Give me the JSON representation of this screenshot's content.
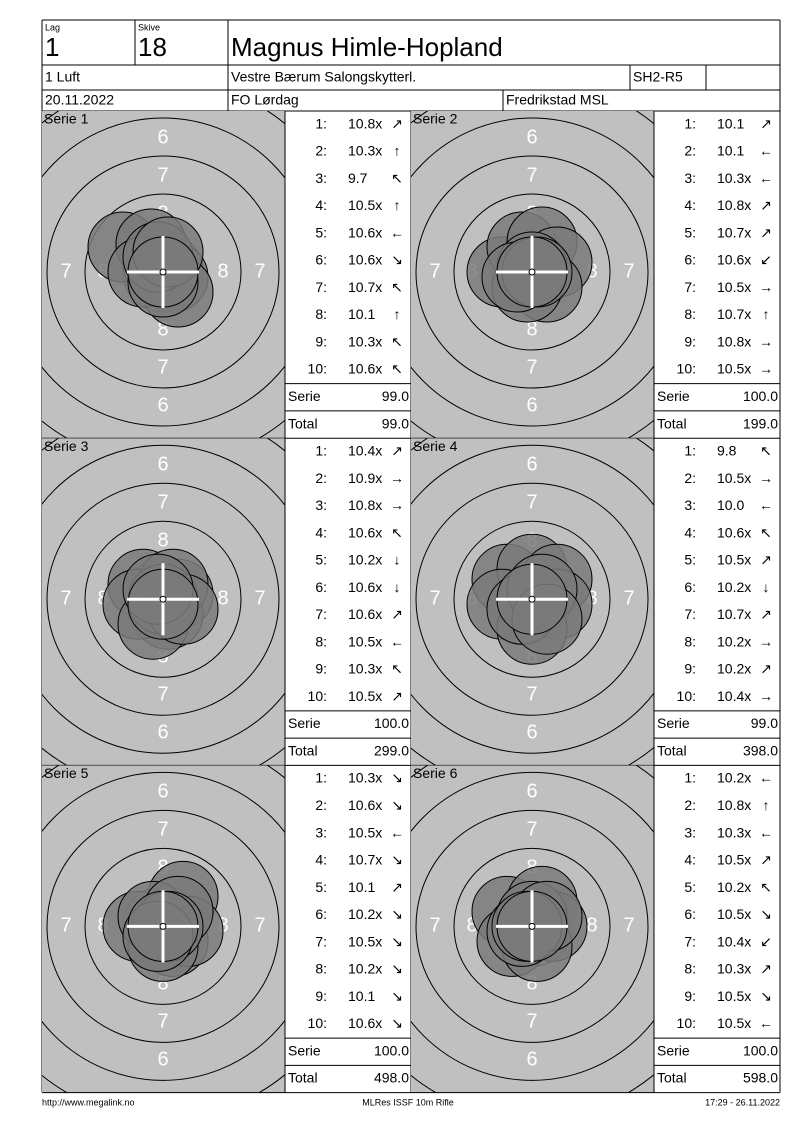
{
  "header": {
    "lag_label": "Lag",
    "lag": "1",
    "skive_label": "Skive",
    "skive": "18",
    "name": "Magnus Himle-Hopland",
    "class": "1 Luft",
    "club": "Vestre Bærum Salongskytterl.",
    "code": "SH2-R5",
    "date": "20.11.2022",
    "event": "FO Lørdag",
    "place": "Fredrikstad MSL"
  },
  "ring_labels": [
    "6",
    "7",
    "8"
  ],
  "series": [
    {
      "title": "Serie 1",
      "shots": [
        [
          "1:",
          "10.8x",
          "↗"
        ],
        [
          "2:",
          "10.3x",
          "↑"
        ],
        [
          "3:",
          "9.7",
          "↖"
        ],
        [
          "4:",
          "10.5x",
          "↑"
        ],
        [
          "5:",
          "10.6x",
          "←"
        ],
        [
          "6:",
          "10.6x",
          "↘"
        ],
        [
          "7:",
          "10.7x",
          "↖"
        ],
        [
          "8:",
          "10.1",
          "↑"
        ],
        [
          "9:",
          "10.3x",
          "↖"
        ],
        [
          "10:",
          "10.6x",
          "↖"
        ]
      ],
      "serie_label": "Serie",
      "serie": "99.0",
      "total_label": "Total",
      "total": "99.0"
    },
    {
      "title": "Serie 2",
      "shots": [
        [
          "1:",
          "10.1",
          "↗"
        ],
        [
          "2:",
          "10.1",
          "←"
        ],
        [
          "3:",
          "10.3x",
          "←"
        ],
        [
          "4:",
          "10.8x",
          "↗"
        ],
        [
          "5:",
          "10.7x",
          "↗"
        ],
        [
          "6:",
          "10.6x",
          "↙"
        ],
        [
          "7:",
          "10.5x",
          "→"
        ],
        [
          "8:",
          "10.7x",
          "↑"
        ],
        [
          "9:",
          "10.8x",
          "→"
        ],
        [
          "10:",
          "10.5x",
          "→"
        ]
      ],
      "serie_label": "Serie",
      "serie": "100.0",
      "total_label": "Total",
      "total": "199.0"
    },
    {
      "title": "Serie 3",
      "shots": [
        [
          "1:",
          "10.4x",
          "↗"
        ],
        [
          "2:",
          "10.9x",
          "→"
        ],
        [
          "3:",
          "10.8x",
          "→"
        ],
        [
          "4:",
          "10.6x",
          "↖"
        ],
        [
          "5:",
          "10.2x",
          "↓"
        ],
        [
          "6:",
          "10.6x",
          "↓"
        ],
        [
          "7:",
          "10.6x",
          "↗"
        ],
        [
          "8:",
          "10.5x",
          "←"
        ],
        [
          "9:",
          "10.3x",
          "↖"
        ],
        [
          "10:",
          "10.5x",
          "↗"
        ]
      ],
      "serie_label": "Serie",
      "serie": "100.0",
      "total_label": "Total",
      "total": "299.0"
    },
    {
      "title": "Serie 4",
      "shots": [
        [
          "1:",
          "9.8",
          "↖"
        ],
        [
          "2:",
          "10.5x",
          "→"
        ],
        [
          "3:",
          "10.0",
          "←"
        ],
        [
          "4:",
          "10.6x",
          "↖"
        ],
        [
          "5:",
          "10.5x",
          "↗"
        ],
        [
          "6:",
          "10.2x",
          "↓"
        ],
        [
          "7:",
          "10.7x",
          "↗"
        ],
        [
          "8:",
          "10.2x",
          "→"
        ],
        [
          "9:",
          "10.2x",
          "↗"
        ],
        [
          "10:",
          "10.4x",
          "→"
        ]
      ],
      "serie_label": "Serie",
      "serie": "99.0",
      "total_label": "Total",
      "total": "398.0"
    },
    {
      "title": "Serie 5",
      "shots": [
        [
          "1:",
          "10.3x",
          "↘"
        ],
        [
          "2:",
          "10.6x",
          "↘"
        ],
        [
          "3:",
          "10.5x",
          "←"
        ],
        [
          "4:",
          "10.7x",
          "↘"
        ],
        [
          "5:",
          "10.1",
          "↗"
        ],
        [
          "6:",
          "10.2x",
          "↘"
        ],
        [
          "7:",
          "10.5x",
          "↘"
        ],
        [
          "8:",
          "10.2x",
          "↘"
        ],
        [
          "9:",
          "10.1",
          "↘"
        ],
        [
          "10:",
          "10.6x",
          "↘"
        ]
      ],
      "serie_label": "Serie",
      "serie": "100.0",
      "total_label": "Total",
      "total": "498.0"
    },
    {
      "title": "Serie 6",
      "shots": [
        [
          "1:",
          "10.2x",
          "←"
        ],
        [
          "2:",
          "10.8x",
          "↑"
        ],
        [
          "3:",
          "10.3x",
          "←"
        ],
        [
          "4:",
          "10.5x",
          "↗"
        ],
        [
          "5:",
          "10.2x",
          "↖"
        ],
        [
          "6:",
          "10.5x",
          "↘"
        ],
        [
          "7:",
          "10.4x",
          "↙"
        ],
        [
          "8:",
          "10.3x",
          "↗"
        ],
        [
          "9:",
          "10.5x",
          "↘"
        ],
        [
          "10:",
          "10.5x",
          "←"
        ]
      ],
      "serie_label": "Serie",
      "serie": "100.0",
      "total_label": "Total",
      "total": "598.0"
    }
  ],
  "footer": {
    "url": "http://www.megalink.no",
    "software": "MLRes ISSF 10m Rifle",
    "timestamp": "17:29 - 26.11.2022"
  }
}
